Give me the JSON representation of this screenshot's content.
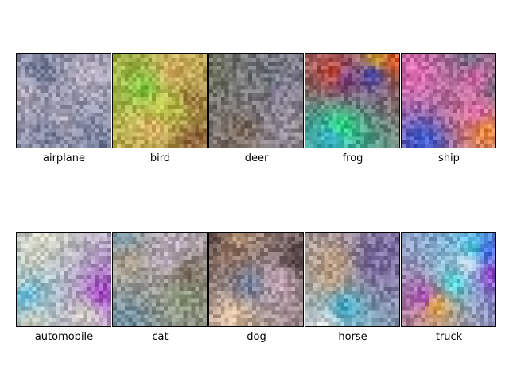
{
  "figure": {
    "rows": 2,
    "columns": 5,
    "images": [
      {
        "label": "airplane",
        "palette": [
          "#8a8fa8",
          "#6f7894",
          "#a49ab0",
          "#5d6479",
          "#b8b0c0",
          "#7b88a8"
        ]
      },
      {
        "label": "bird",
        "palette": [
          "#6fc43a",
          "#2fb6d6",
          "#c2d24a",
          "#3a7a3a",
          "#e0b06a",
          "#8a5a3a"
        ]
      },
      {
        "label": "deer",
        "palette": [
          "#8a8a7a",
          "#6a6f5a",
          "#b49a8a",
          "#5a7a8a",
          "#9a8ab0",
          "#7a6a5a"
        ]
      },
      {
        "label": "frog",
        "palette": [
          "#1fe06a",
          "#2a3ad6",
          "#e04a1a",
          "#f0c020",
          "#6a3aa0",
          "#3ab0e0"
        ]
      },
      {
        "label": "ship",
        "palette": [
          "#4ad0e0",
          "#e06ab0",
          "#d0b07a",
          "#6a6a80",
          "#f09030",
          "#3a5ad0"
        ]
      },
      {
        "label": "automobile",
        "palette": [
          "#2a3ae0",
          "#e04a20",
          "#9a3ac0",
          "#e0c070",
          "#3ab0e0",
          "#d0d0c0"
        ]
      },
      {
        "label": "cat",
        "palette": [
          "#b0a08a",
          "#8a9a7a",
          "#c0b0c0",
          "#7a6a5a",
          "#e0c0a0",
          "#6a8a9a"
        ]
      },
      {
        "label": "dog",
        "palette": [
          "#c0a080",
          "#8a6a5a",
          "#e0c0a0",
          "#6a7a9a",
          "#d0b0c0",
          "#4a3a3a"
        ]
      },
      {
        "label": "horse",
        "palette": [
          "#7a6aa0",
          "#3ab0d0",
          "#c0a080",
          "#2a3ad0",
          "#e0e0e0",
          "#9a5a7a"
        ]
      },
      {
        "label": "truck",
        "palette": [
          "#2a4ae0",
          "#e02a3a",
          "#40e0e0",
          "#f0b020",
          "#a03ad0",
          "#e0e0e0"
        ]
      }
    ]
  }
}
